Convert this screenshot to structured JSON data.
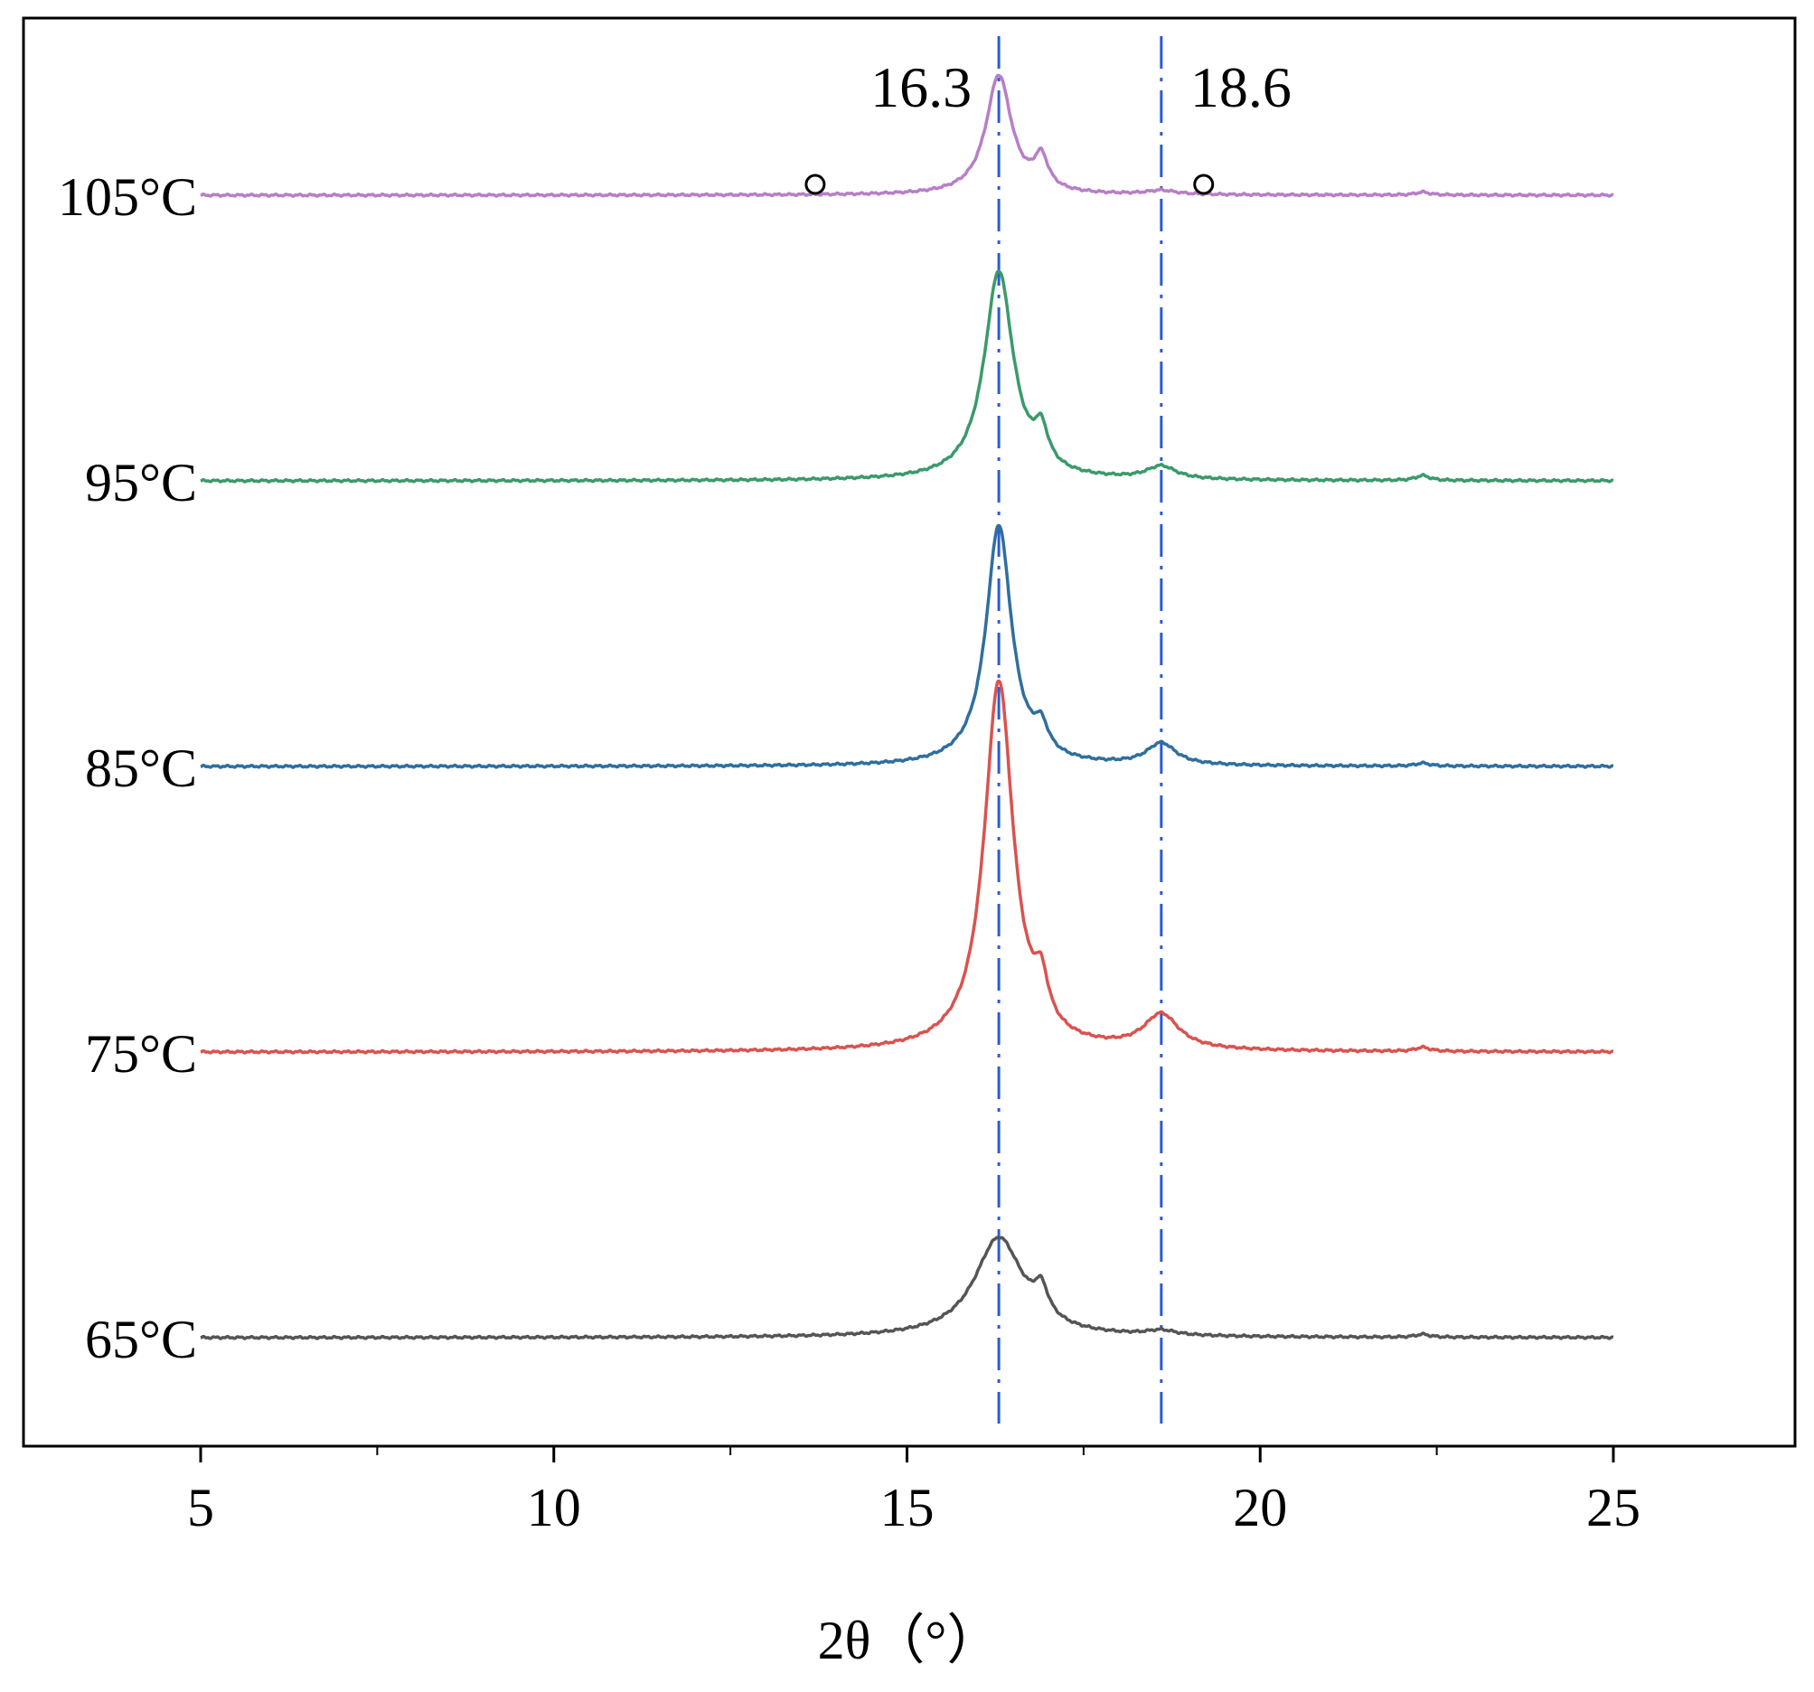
{
  "chart_data": {
    "type": "line",
    "title": "",
    "xlabel": "2θ（°）",
    "ylabel": "",
    "xlim": [
      0,
      27.5
    ],
    "x_ticks": [
      5,
      10,
      15,
      20,
      25
    ],
    "x_tick_labels": [
      "5",
      "10",
      "15",
      "20",
      "25"
    ],
    "y_ticks_shown": false,
    "grid": false,
    "legend": "none",
    "peak_lines": [
      {
        "x": 16.3,
        "label": "16.3",
        "color": "#2a5bd7",
        "style": "dash-dot"
      },
      {
        "x": 18.6,
        "label": "18.6",
        "color": "#2a5bd7",
        "style": "dash-dot"
      }
    ],
    "markers": [
      {
        "type": "open-circle",
        "x": 13.7,
        "series": "105°C"
      },
      {
        "type": "open-circle",
        "x": 19.2,
        "series": "105°C"
      }
    ],
    "series": [
      {
        "name": "65°C",
        "color": "#555555",
        "stack_order": 0,
        "x_range": [
          5,
          25
        ],
        "peaks": [
          {
            "x": 16.3,
            "height": 1.0,
            "width": 0.42
          },
          {
            "x": 16.9,
            "height": 0.28,
            "width": 0.12
          },
          {
            "x": 18.6,
            "height": 0.05,
            "width": 0.25
          },
          {
            "x": 22.3,
            "height": 0.03,
            "width": 0.12
          }
        ]
      },
      {
        "name": "75°C",
        "color": "#d9534f",
        "stack_order": 1,
        "x_range": [
          5,
          25
        ],
        "peaks": [
          {
            "x": 16.3,
            "height": 3.72,
            "width": 0.25
          },
          {
            "x": 16.9,
            "height": 0.42,
            "width": 0.12
          },
          {
            "x": 18.6,
            "height": 0.35,
            "width": 0.3
          },
          {
            "x": 22.3,
            "height": 0.04,
            "width": 0.12
          }
        ]
      },
      {
        "name": "85°C",
        "color": "#2f6f9f",
        "stack_order": 2,
        "x_range": [
          5,
          25
        ],
        "peaks": [
          {
            "x": 16.3,
            "height": 2.42,
            "width": 0.22
          },
          {
            "x": 16.9,
            "height": 0.25,
            "width": 0.12
          },
          {
            "x": 18.6,
            "height": 0.22,
            "width": 0.25
          },
          {
            "x": 22.3,
            "height": 0.03,
            "width": 0.12
          }
        ]
      },
      {
        "name": "95°C",
        "color": "#3a9a6a",
        "stack_order": 3,
        "x_range": [
          5,
          25
        ],
        "peaks": [
          {
            "x": 16.3,
            "height": 2.1,
            "width": 0.25
          },
          {
            "x": 16.9,
            "height": 0.35,
            "width": 0.12
          },
          {
            "x": 18.6,
            "height": 0.13,
            "width": 0.25
          },
          {
            "x": 22.3,
            "height": 0.05,
            "width": 0.12
          }
        ]
      },
      {
        "name": "105°C",
        "color": "#b77fc6",
        "stack_order": 4,
        "x_range": [
          5,
          25
        ],
        "peaks": [
          {
            "x": 16.3,
            "height": 1.2,
            "width": 0.22
          },
          {
            "x": 16.9,
            "height": 0.32,
            "width": 0.12
          },
          {
            "x": 18.6,
            "height": 0.04,
            "width": 0.25
          },
          {
            "x": 22.3,
            "height": 0.03,
            "width": 0.12
          }
        ]
      }
    ]
  }
}
